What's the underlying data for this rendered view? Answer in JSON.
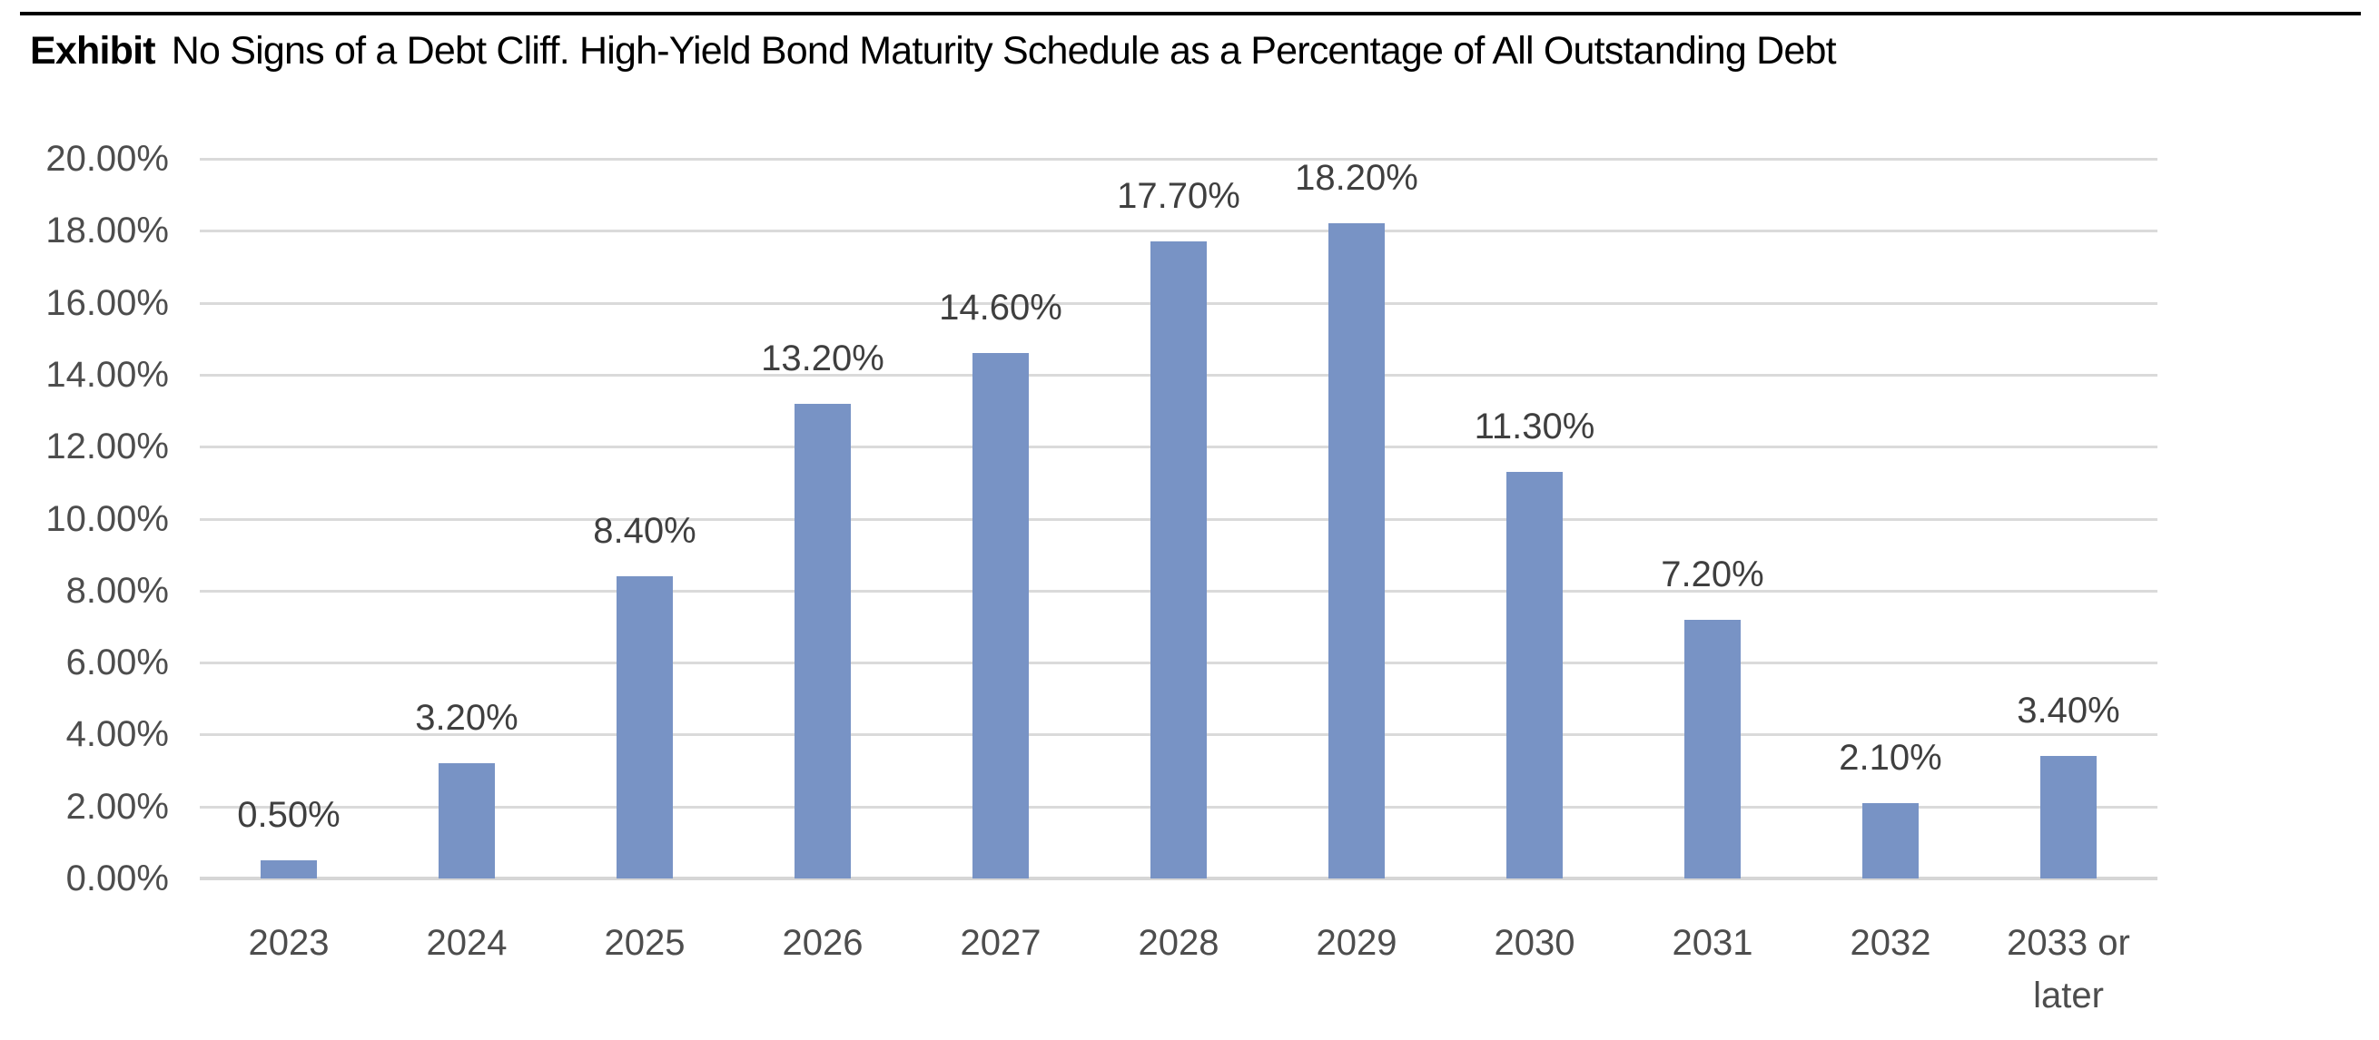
{
  "header": {
    "label": "Exhibit",
    "title": "No Signs of a Debt Cliff. High-Yield Bond Maturity Schedule as a Percentage of All Outstanding Debt",
    "rule_color": "#000000"
  },
  "chart_data": {
    "type": "bar",
    "title": "No Signs of a Debt Cliff. High-Yield Bond Maturity Schedule as a Percentage of All Outstanding Debt",
    "categories": [
      "2023",
      "2024",
      "2025",
      "2026",
      "2027",
      "2028",
      "2029",
      "2030",
      "2031",
      "2032",
      "2033 or later"
    ],
    "values": [
      0.5,
      3.2,
      8.4,
      13.2,
      14.6,
      17.7,
      18.2,
      11.3,
      7.2,
      2.1,
      3.4
    ],
    "data_labels": [
      "0.50%",
      "3.20%",
      "8.40%",
      "13.20%",
      "14.60%",
      "17.70%",
      "18.20%",
      "11.30%",
      "7.20%",
      "2.10%",
      "3.40%"
    ],
    "y_ticks": [
      "0.00%",
      "2.00%",
      "4.00%",
      "6.00%",
      "8.00%",
      "10.00%",
      "12.00%",
      "14.00%",
      "16.00%",
      "18.00%",
      "20.00%"
    ],
    "y_tick_step": 2,
    "ylim": [
      0,
      20
    ],
    "xlabel": "",
    "ylabel": "",
    "grid": "horizontal",
    "legend": "none",
    "bar_color": "#7893C5",
    "gridline_color": "#DADADA",
    "axis_line_color": "#D6D6D6",
    "tick_label_color": "#4d4d4d",
    "data_label_color": "#3f3f3f"
  }
}
